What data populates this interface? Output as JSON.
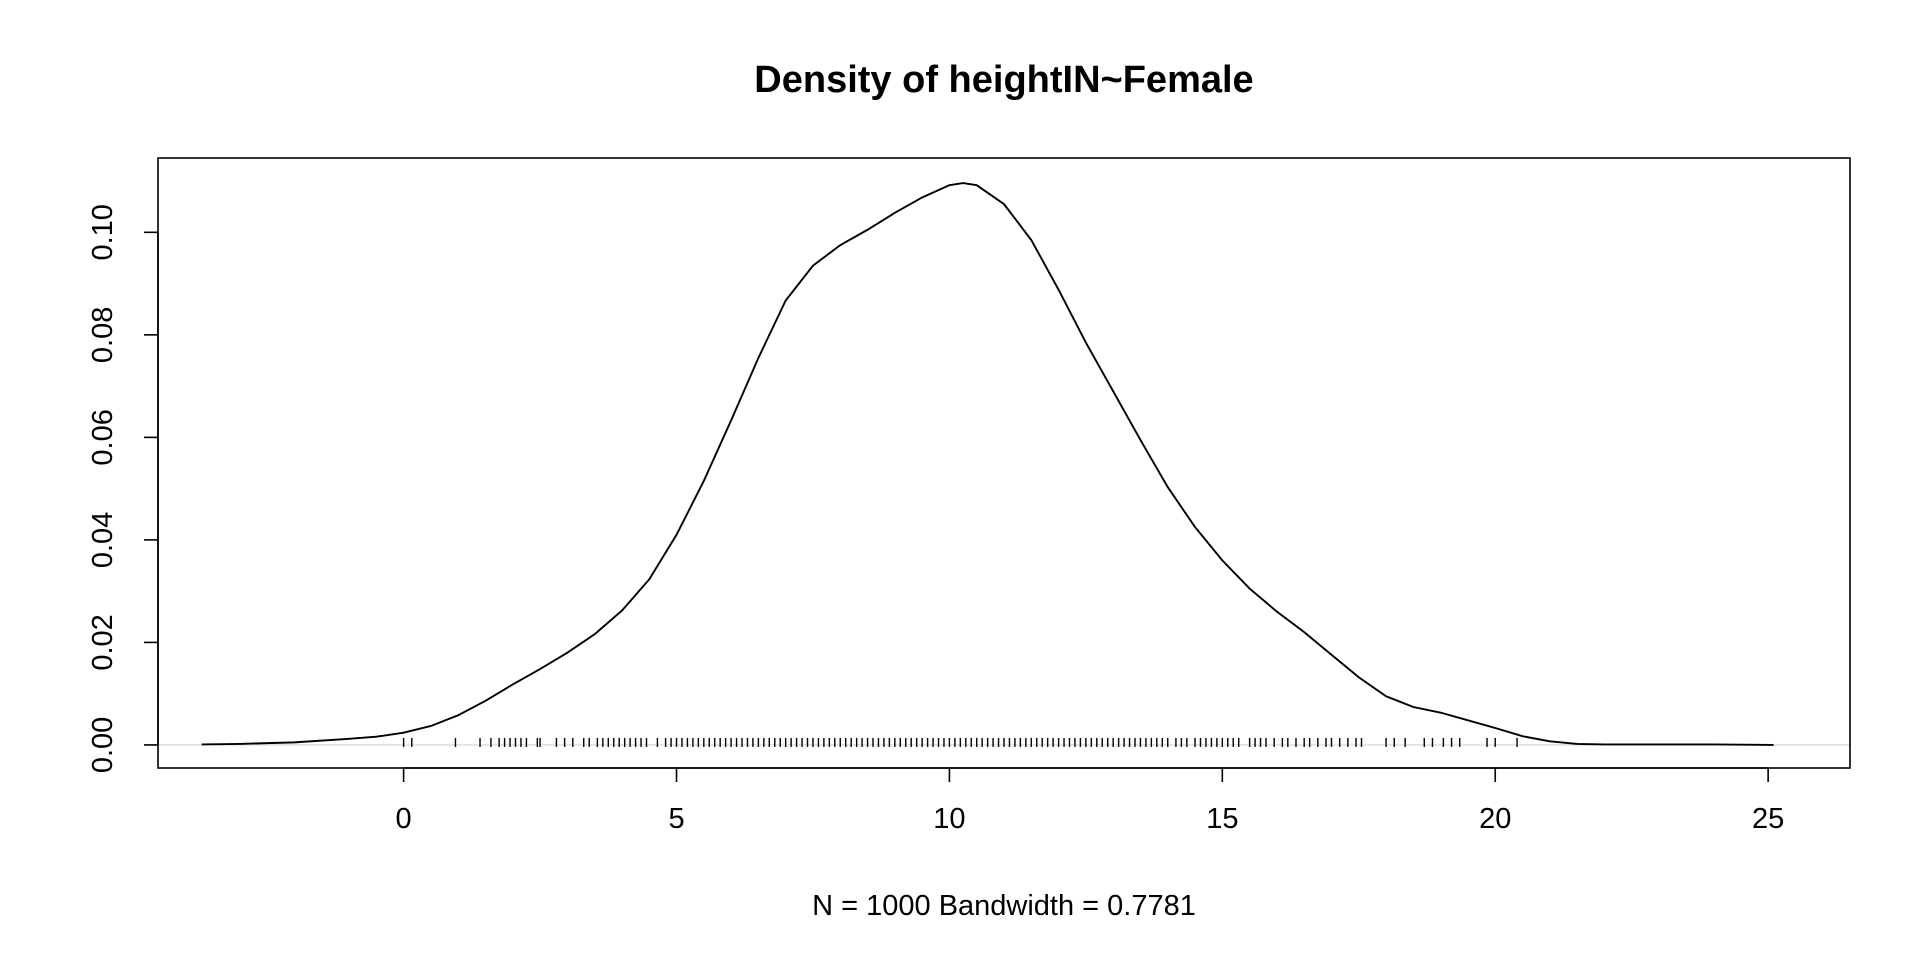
{
  "chart_data": {
    "type": "line",
    "title": "Density of heightIN~Female",
    "xlabel": "N = 1000   Bandwidth = 0.7781",
    "ylabel": "",
    "xlim": [
      -4.5,
      26.5
    ],
    "ylim": [
      -0.0045,
      0.1145
    ],
    "x_ticks": [
      0,
      5,
      10,
      15,
      20,
      25
    ],
    "y_ticks": [
      0.0,
      0.02,
      0.04,
      0.06,
      0.08,
      0.1
    ],
    "x_tick_labels": [
      "0",
      "5",
      "10",
      "15",
      "20",
      "25"
    ],
    "y_tick_labels": [
      "0.00",
      "0.02",
      "0.04",
      "0.06",
      "0.08",
      "0.10"
    ],
    "grid": false,
    "zero_line": true,
    "series": [
      {
        "x": [
          -3.7,
          -3,
          -2,
          -1,
          -0.5,
          0,
          0.5,
          1,
          1.5,
          2,
          2.5,
          3,
          3.5,
          4,
          4.5,
          5,
          5.5,
          6,
          6.5,
          7,
          7.5,
          8,
          8.5,
          9,
          9.5,
          10,
          10.25,
          10.5,
          11,
          11.5,
          12,
          12.5,
          13,
          13.5,
          14,
          14.5,
          15,
          15.5,
          16,
          16.5,
          17,
          17.5,
          18,
          18.5,
          19,
          19.5,
          20,
          20.5,
          21,
          21.5,
          22,
          23,
          24,
          25.1
        ],
        "y": [
          0.0001,
          0.0002,
          0.0005,
          0.0012,
          0.0016,
          0.0024,
          0.0037,
          0.0058,
          0.0086,
          0.0118,
          0.0148,
          0.018,
          0.0216,
          0.0262,
          0.0323,
          0.041,
          0.0515,
          0.0633,
          0.0755,
          0.0867,
          0.0935,
          0.0975,
          0.1005,
          0.1038,
          0.1068,
          0.1092,
          0.1096,
          0.1092,
          0.1055,
          0.0985,
          0.0888,
          0.0785,
          0.069,
          0.0595,
          0.0503,
          0.0425,
          0.036,
          0.0305,
          0.026,
          0.022,
          0.0176,
          0.0132,
          0.0095,
          0.0074,
          0.0063,
          0.0048,
          0.0033,
          0.0017,
          0.0007,
          0.0002,
          0.0001,
          0.0001,
          0.0001,
          0.0
        ]
      }
    ],
    "rug": [
      0,
      0.15,
      0.95,
      1.4,
      1.6,
      1.75,
      1.85,
      1.95,
      2.05,
      2.15,
      2.25,
      2.45,
      2.5,
      2.8,
      2.95,
      3.1,
      3.3,
      3.4,
      3.55,
      3.65,
      3.75,
      3.85,
      3.95,
      4.05,
      4.15,
      4.25,
      4.35,
      4.45,
      4.65,
      4.8,
      4.9,
      5.0,
      5.1,
      5.2,
      5.3,
      5.4,
      5.5,
      5.6,
      5.7,
      5.8,
      5.9,
      6.0,
      6.1,
      6.2,
      6.3,
      6.4,
      6.5,
      6.6,
      6.7,
      6.8,
      6.9,
      7.0,
      7.1,
      7.2,
      7.3,
      7.4,
      7.5,
      7.6,
      7.7,
      7.8,
      7.9,
      8.0,
      8.1,
      8.2,
      8.3,
      8.4,
      8.5,
      8.6,
      8.7,
      8.8,
      8.9,
      9.0,
      9.1,
      9.2,
      9.3,
      9.4,
      9.5,
      9.6,
      9.7,
      9.8,
      9.9,
      10.0,
      10.1,
      10.2,
      10.3,
      10.4,
      10.5,
      10.6,
      10.7,
      10.8,
      10.9,
      11.0,
      11.1,
      11.2,
      11.3,
      11.4,
      11.5,
      11.6,
      11.7,
      11.8,
      11.9,
      12.0,
      12.1,
      12.2,
      12.3,
      12.4,
      12.5,
      12.6,
      12.7,
      12.8,
      12.9,
      13.0,
      13.1,
      13.2,
      13.3,
      13.4,
      13.5,
      13.6,
      13.7,
      13.8,
      13.9,
      14.0,
      14.15,
      14.25,
      14.35,
      14.5,
      14.6,
      14.7,
      14.8,
      14.9,
      15.0,
      15.1,
      15.2,
      15.3,
      15.5,
      15.6,
      15.7,
      15.8,
      15.95,
      16.1,
      16.2,
      16.35,
      16.5,
      16.6,
      16.75,
      16.9,
      17.0,
      17.15,
      17.3,
      17.45,
      17.55,
      18.0,
      18.15,
      18.35,
      18.7,
      18.85,
      19.05,
      19.2,
      19.35,
      19.85,
      20.0,
      20.4
    ]
  }
}
